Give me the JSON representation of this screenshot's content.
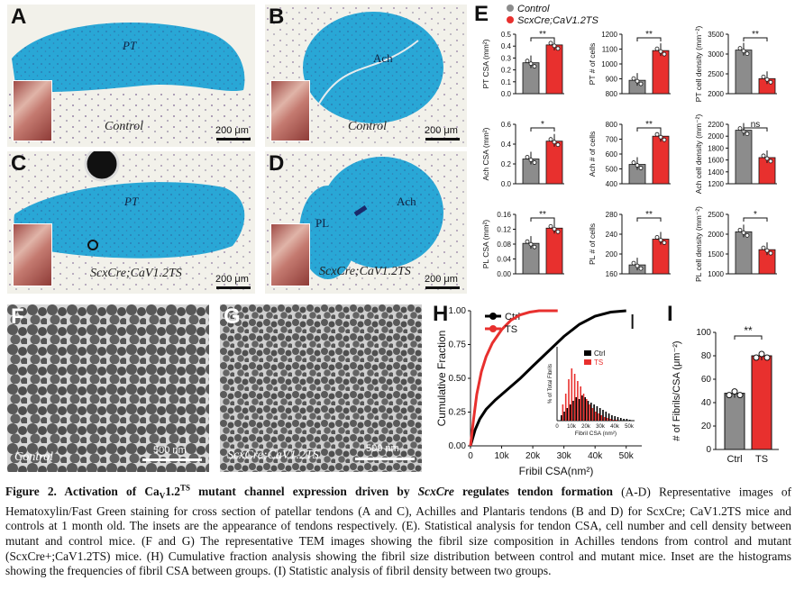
{
  "panels": {
    "A": {
      "letter": "A",
      "region": "PT",
      "genotype": "Control",
      "scale": "200 μm"
    },
    "B": {
      "letter": "B",
      "region": "Ach",
      "genotype": "Control",
      "scale": "200 μm"
    },
    "C": {
      "letter": "C",
      "region": "PT",
      "genotype": "ScxCre;CaV1.2TS",
      "scale": "200 μm"
    },
    "D": {
      "letter": "D",
      "region_a": "Ach",
      "region_b": "PL",
      "genotype": "ScxCre;CaV1.2TS",
      "scale": "200 μm"
    },
    "F": {
      "letter": "F",
      "genotype": "Control",
      "scale": "500 nm"
    },
    "G": {
      "letter": "G",
      "genotype": "ScxCre;CaV1.2TS",
      "scale": "500 nm"
    }
  },
  "legend_E": {
    "letter": "E",
    "control": "Control",
    "mutant": "ScxCre;CaV1.2TS",
    "control_color": "#8c8c8c",
    "mutant_color": "#e8302e"
  },
  "chart_data": [
    {
      "type": "bar",
      "panel": "E",
      "ylabel": "PT CSA (mm²)",
      "categories": [
        "Control",
        "ScxCre;CaV1.2TS"
      ],
      "values": [
        0.26,
        0.41
      ],
      "ylim": [
        0,
        0.5
      ],
      "ticks": [
        "0.0",
        "0.1",
        "0.2",
        "0.3",
        "0.4",
        "0.5"
      ],
      "sig": "**"
    },
    {
      "type": "bar",
      "panel": "E",
      "ylabel": "PT # of cells",
      "categories": [
        "Control",
        "ScxCre;CaV1.2TS"
      ],
      "values": [
        890,
        1090
      ],
      "ylim": [
        800,
        1200
      ],
      "ticks": [
        "800",
        "900",
        "1000",
        "1100",
        "1200"
      ],
      "sig": "**"
    },
    {
      "type": "bar",
      "panel": "E",
      "ylabel": "PT cell density (mm⁻²)",
      "categories": [
        "Control",
        "ScxCre;CaV1.2TS"
      ],
      "values": [
        3100,
        2380
      ],
      "ylim": [
        2000,
        3500
      ],
      "ticks": [
        "2000",
        "2500",
        "3000",
        "3500"
      ],
      "sig": "**"
    },
    {
      "type": "bar",
      "panel": "E",
      "ylabel": "Ach CSA (mm²)",
      "categories": [
        "Control",
        "ScxCre;CaV1.2TS"
      ],
      "values": [
        0.25,
        0.43
      ],
      "ylim": [
        0,
        0.6
      ],
      "ticks": [
        "0.0",
        "0.2",
        "0.4",
        "0.6"
      ],
      "sig": "*"
    },
    {
      "type": "bar",
      "panel": "E",
      "ylabel": "Ach # of cells",
      "categories": [
        "Control",
        "ScxCre;CaV1.2TS"
      ],
      "values": [
        530,
        720
      ],
      "ylim": [
        400,
        800
      ],
      "ticks": [
        "400",
        "500",
        "600",
        "700",
        "800"
      ],
      "sig": "**"
    },
    {
      "type": "bar",
      "panel": "E",
      "ylabel": "Ach cell density (mm⁻²)",
      "categories": [
        "Control",
        "ScxCre;CaV1.2TS"
      ],
      "values": [
        2100,
        1640
      ],
      "ylim": [
        1200,
        2200
      ],
      "ticks": [
        "1200",
        "1400",
        "1600",
        "1800",
        "2000",
        "2200"
      ],
      "sig": "ns"
    },
    {
      "type": "bar",
      "panel": "E",
      "ylabel": "PL CSA (mm²)",
      "categories": [
        "Control",
        "ScxCre;CaV1.2TS"
      ],
      "values": [
        0.082,
        0.123
      ],
      "ylim": [
        0,
        0.16
      ],
      "ticks": [
        "0.00",
        "0.04",
        "0.08",
        "0.12",
        "0.16"
      ],
      "sig": "**"
    },
    {
      "type": "bar",
      "panel": "E",
      "ylabel": "PL # of cells",
      "categories": [
        "Control",
        "ScxCre;CaV1.2TS"
      ],
      "values": [
        178,
        230
      ],
      "ylim": [
        160,
        280
      ],
      "ticks": [
        "160",
        "200",
        "240",
        "280"
      ],
      "sig": "**"
    },
    {
      "type": "bar",
      "panel": "E",
      "ylabel": "PL cell density (mm⁻²)",
      "categories": [
        "Control",
        "ScxCre;CaV1.2TS"
      ],
      "values": [
        2060,
        1610
      ],
      "ylim": [
        1000,
        2500
      ],
      "ticks": [
        "1000",
        "1500",
        "2000",
        "2500"
      ],
      "sig": "*"
    },
    {
      "type": "line",
      "panel": "H",
      "xlabel": "Fribil CSA(nm²)",
      "ylabel": "Cumulative Fraction",
      "xticks": [
        "0",
        "10k",
        "20k",
        "30k",
        "40k",
        "50k"
      ],
      "yticks": [
        "0.00",
        "0.25",
        "0.50",
        "0.75",
        "1.00"
      ],
      "xlim": [
        0,
        55000
      ],
      "ylim": [
        0,
        1
      ],
      "series": [
        {
          "name": "Ctrl",
          "color": "#000000",
          "x": [
            0,
            1500,
            3000,
            5000,
            8000,
            12000,
            16000,
            20000,
            25000,
            30000,
            35000,
            40000,
            45000,
            50000
          ],
          "y": [
            0,
            0.12,
            0.2,
            0.27,
            0.34,
            0.42,
            0.5,
            0.59,
            0.7,
            0.81,
            0.9,
            0.96,
            0.99,
            1.0
          ]
        },
        {
          "name": "TS",
          "color": "#e8302e",
          "x": [
            0,
            1000,
            2000,
            3500,
            5000,
            7000,
            10000,
            13000,
            16000,
            19000,
            22000,
            25000,
            28000
          ],
          "y": [
            0,
            0.2,
            0.38,
            0.55,
            0.66,
            0.76,
            0.86,
            0.93,
            0.97,
            0.99,
            1.0,
            1.0,
            1.0
          ]
        }
      ]
    },
    {
      "type": "bar",
      "panel": "H-inset",
      "xlabel": "Fibril CSA (nm²)",
      "ylabel": "% of Total Fibrils",
      "xticks": [
        "0",
        "10k",
        "20k",
        "30k",
        "40k",
        "50k"
      ],
      "series": [
        {
          "name": "Ctrl",
          "color": "#000000"
        },
        {
          "name": "TS",
          "color": "#e8302e"
        }
      ]
    },
    {
      "type": "bar",
      "panel": "I",
      "ylabel": "# of Fibrils/CSA (μm⁻²)",
      "categories": [
        "Ctrl",
        "TS"
      ],
      "values": [
        48,
        80
      ],
      "ylim": [
        0,
        100
      ],
      "ticks": [
        "0",
        "20",
        "40",
        "60",
        "80",
        "100"
      ],
      "sig": "**"
    }
  ],
  "panel_letters": {
    "H": "H",
    "I": "I"
  },
  "caption": {
    "title_bold_1": "Figure 2. Activation of Ca",
    "title_bold_sub": "V",
    "title_bold_2": "1.2",
    "title_bold_sup": "TS",
    "title_bold_3": " mutant channel expression driven by ",
    "title_bold_italic": "ScxCre",
    "title_bold_4": " regulates tendon formation",
    "body": " (A-D) Representative images of Hematoxylin/Fast Green staining for cross section of patellar tendons (A and C), Achilles and Plantaris tendons (B and D) for ScxCre; CaV1.2TS mice and controls at 1 month old. The insets are the appearance of tendons respectively. (E). Statistical analysis for tendon CSA, cell number and cell density between mutant and control mice. (F and G) The representative TEM images showing the fibril size composition in Achilles tendons from control and mutant (ScxCre+;CaV1.2TS) mice. (H) Cumulative fraction analysis showing the fibril size distribution between control and mutant mice. Inset are the histograms showing the frequencies of fibril CSA between groups. (I) Statistic analysis of fibril density between two groups."
  }
}
